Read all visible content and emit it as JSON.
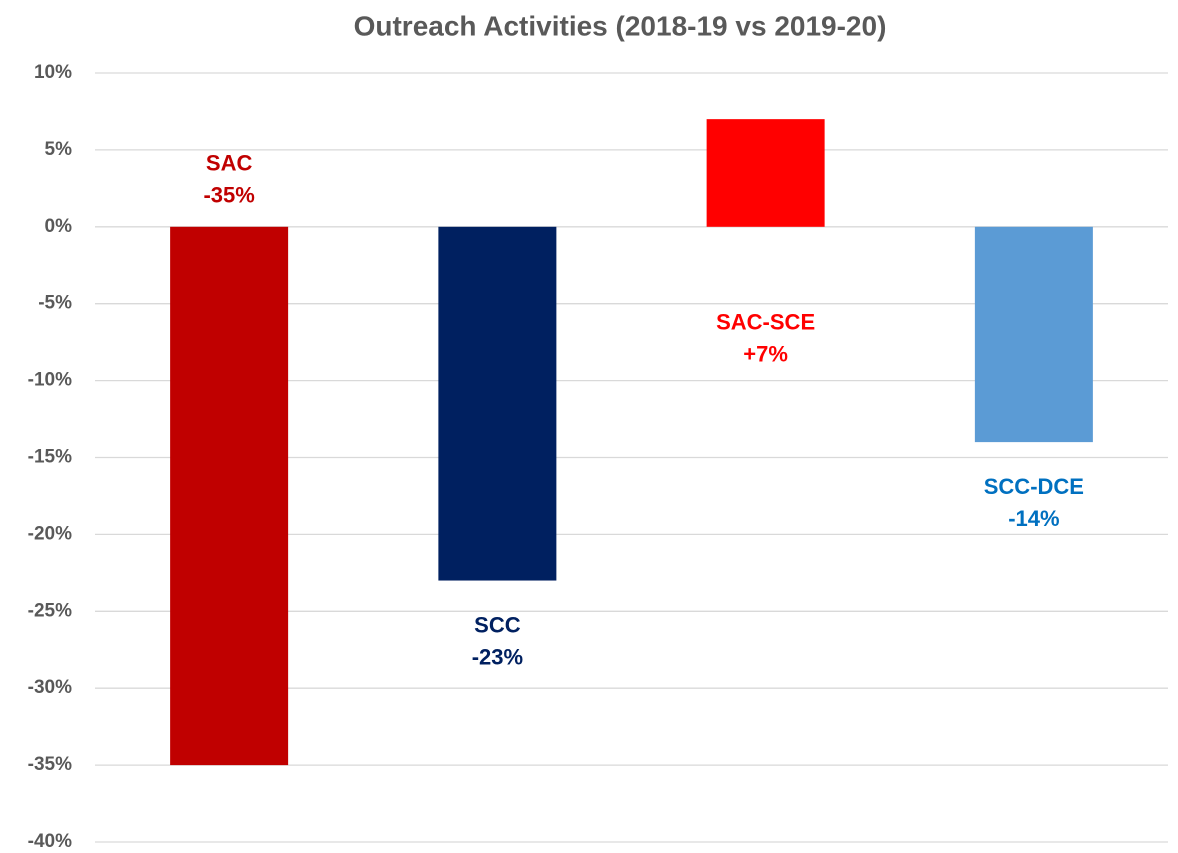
{
  "chart_data": {
    "type": "bar",
    "title": "Outreach Activities (2018-19 vs 2019-20)",
    "categories": [
      "SAC",
      "SCC",
      "SAC-SCE",
      "SCC-DCE"
    ],
    "values": [
      -35,
      -23,
      7,
      -14
    ],
    "value_labels": [
      "-35%",
      "-23%",
      "+7%",
      "-14%"
    ],
    "colors": [
      "#c00000",
      "#002060",
      "#ff0000",
      "#5b9bd5"
    ],
    "label_colors": [
      "#c00000",
      "#002060",
      "#ff0000",
      "#0070c0"
    ],
    "ylim": [
      -40,
      10
    ],
    "yticks": [
      {
        "value": -40,
        "label": "-40%"
      },
      {
        "value": -35,
        "label": "-35%"
      },
      {
        "value": -30,
        "label": "-30%"
      },
      {
        "value": -25,
        "label": "-25%"
      },
      {
        "value": -20,
        "label": "-20%"
      },
      {
        "value": -15,
        "label": "-15%"
      },
      {
        "value": -10,
        "label": "-10%"
      },
      {
        "value": -5,
        "label": "-5%"
      },
      {
        "value": 0,
        "label": "0%"
      },
      {
        "value": 5,
        "label": "5%"
      },
      {
        "value": 10,
        "label": "10%"
      }
    ],
    "grid": true
  }
}
